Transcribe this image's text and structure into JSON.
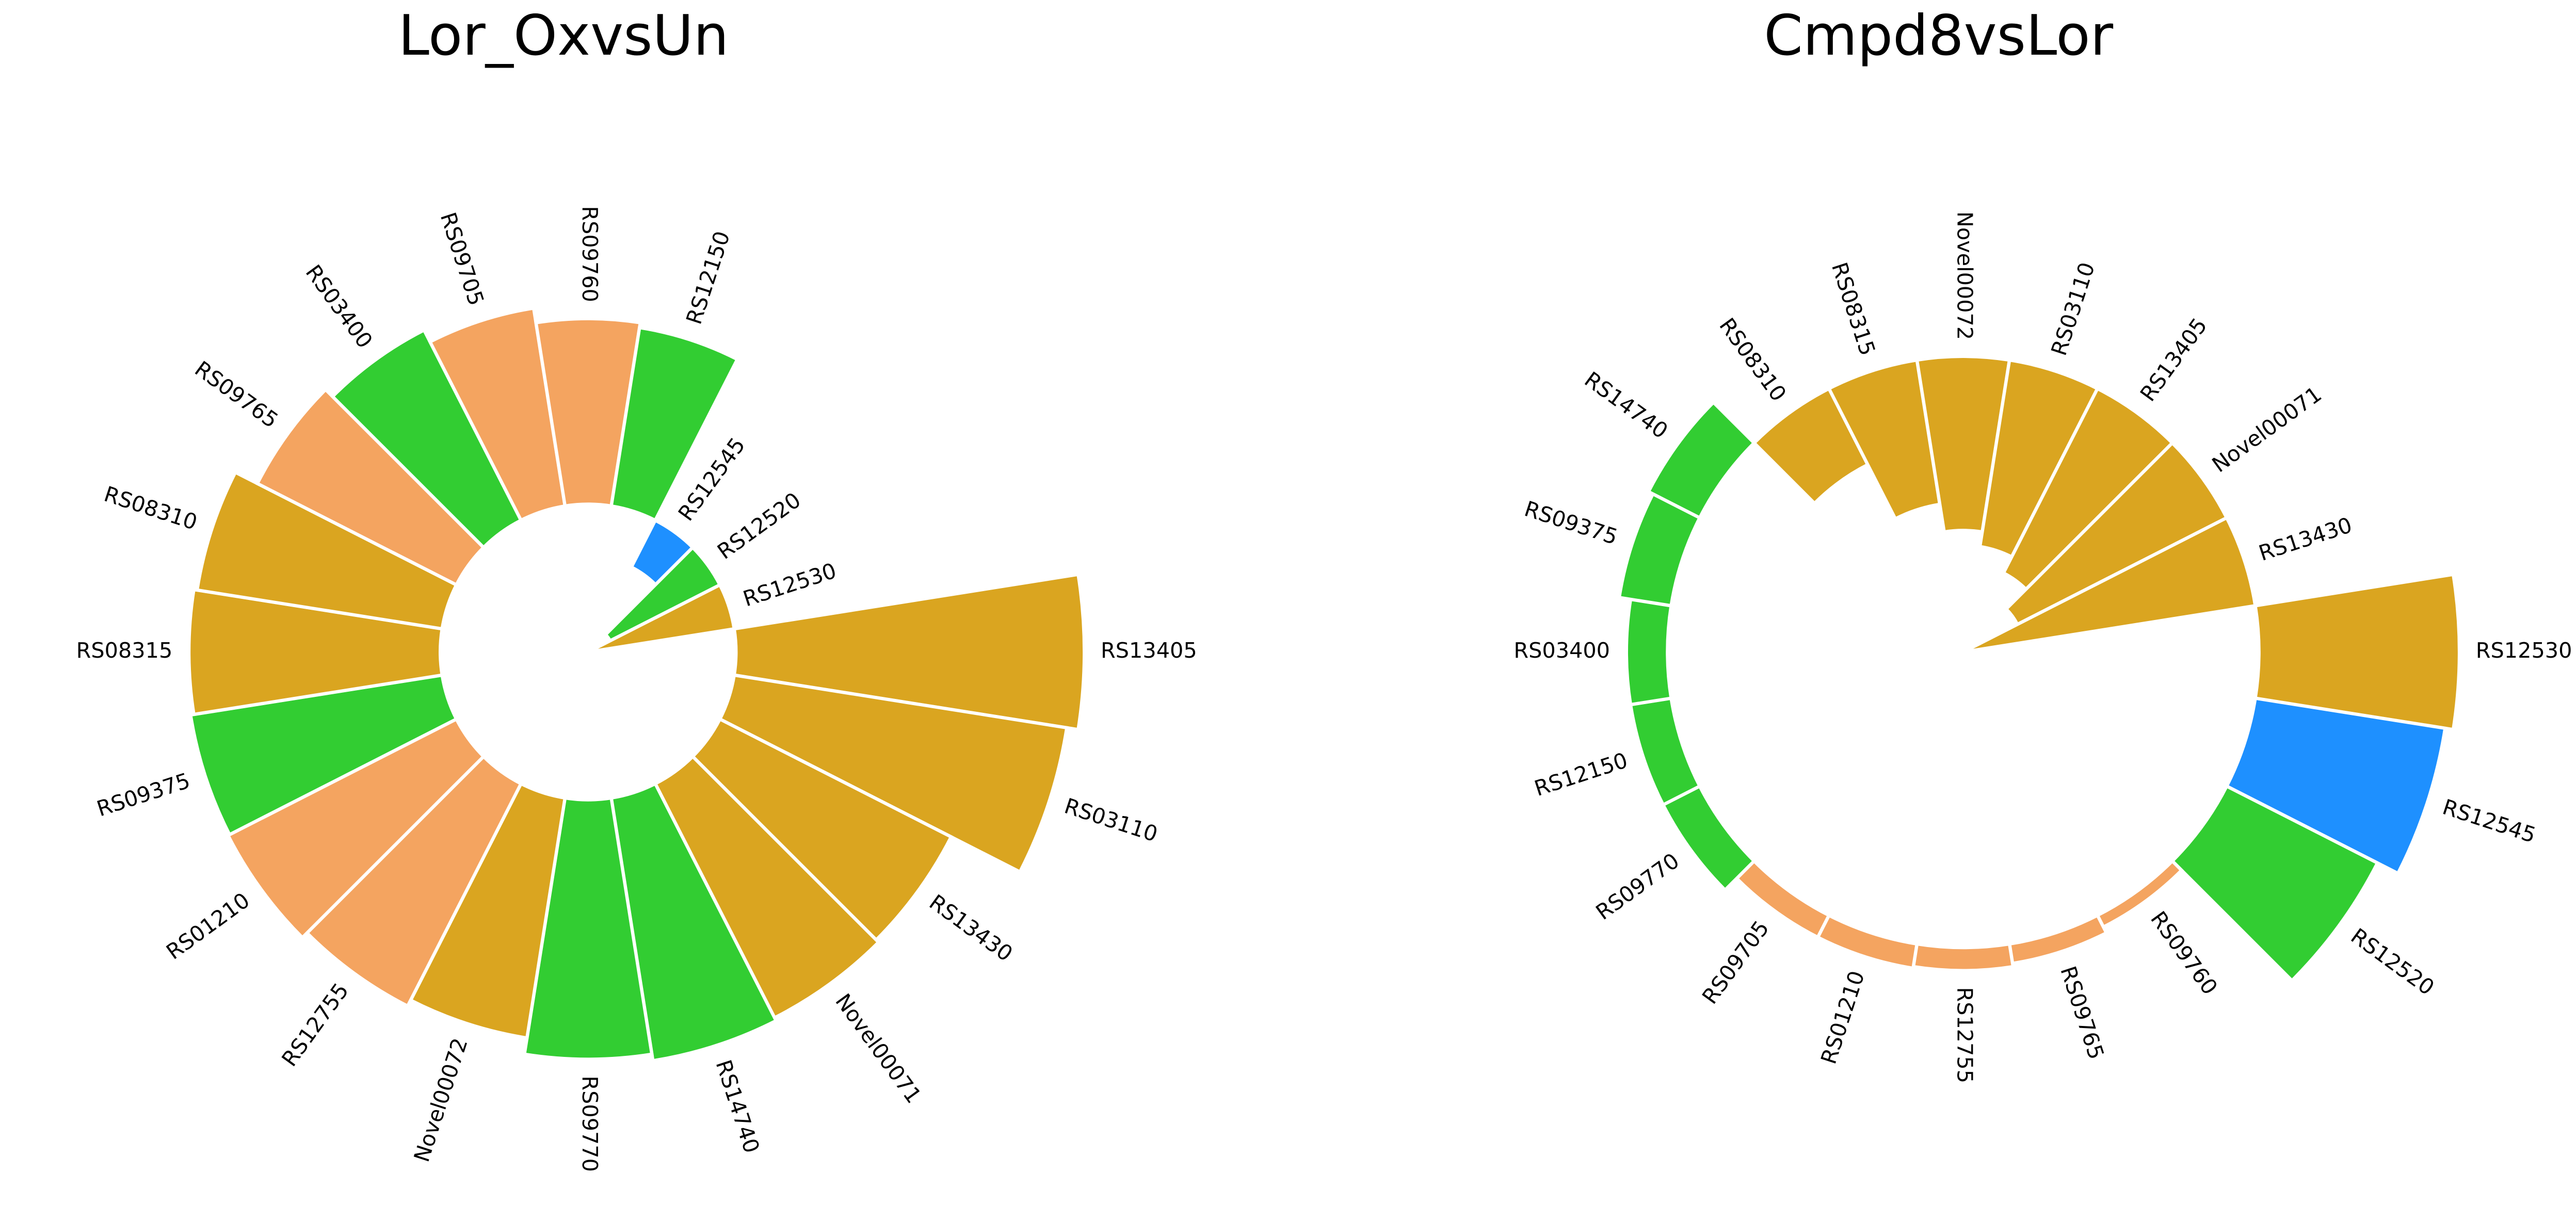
{
  "chart_data": [
    {
      "type": "polar_bar",
      "title": "Lor_OxvsUn",
      "categories": [
        "RS13405",
        "RS03110",
        "RS13430",
        "Novel00071",
        "RS14740",
        "RS09770",
        "Novel00072",
        "RS12755",
        "RS01210",
        "RS09375",
        "RS08315",
        "RS08310",
        "RS09765",
        "RS03400",
        "RS09705",
        "RS09760",
        "RS12150",
        "RS12545",
        "RS12520",
        "RS12530"
      ],
      "values": [
        212,
        205,
        158,
        160,
        162,
        158,
        148,
        152,
        156,
        155,
        153,
        151,
        136,
        130,
        122,
        113,
        110,
        -32,
        -75,
        -90
      ],
      "colors": [
        "#DAA520",
        "#DAA520",
        "#DAA520",
        "#DAA520",
        "#32CD32",
        "#32CD32",
        "#DAA520",
        "#F4A460",
        "#F4A460",
        "#32CD32",
        "#DAA520",
        "#DAA520",
        "#F4A460",
        "#32CD32",
        "#F4A460",
        "#F4A460",
        "#32CD32",
        "#1E90FF",
        "#32CD32",
        "#DAA520"
      ],
      "bottom": 90,
      "ylim": [
        0,
        310
      ]
    },
    {
      "type": "polar_bar",
      "title": "Cmpd8vsLor",
      "categories": [
        "RS12530",
        "RS12545",
        "RS12520",
        "RS09760",
        "RS09765",
        "RS12755",
        "RS01210",
        "RS09705",
        "RS09770",
        "RS12150",
        "RS03400",
        "RS09375",
        "RS14740",
        "RS08310",
        "RS08315",
        "Novel00072",
        "RS03110",
        "RS13405",
        "Novel00071",
        "RS13430"
      ],
      "values": [
        122,
        117,
        103,
        8,
        12,
        14,
        15,
        15,
        25,
        25,
        25,
        32,
        35,
        -52,
        -89,
        -106,
        -115,
        -126,
        -143,
        -180
      ],
      "colors": [
        "#DAA520",
        "#1E90FF",
        "#32CD32",
        "#F4A460",
        "#F4A460",
        "#F4A460",
        "#F4A460",
        "#F4A460",
        "#32CD32",
        "#32CD32",
        "#32CD32",
        "#32CD32",
        "#32CD32",
        "#DAA520",
        "#DAA520",
        "#DAA520",
        "#DAA520",
        "#DAA520",
        "#DAA520",
        "#DAA520"
      ],
      "bottom": 180,
      "ylim": [
        0,
        310
      ]
    }
  ]
}
